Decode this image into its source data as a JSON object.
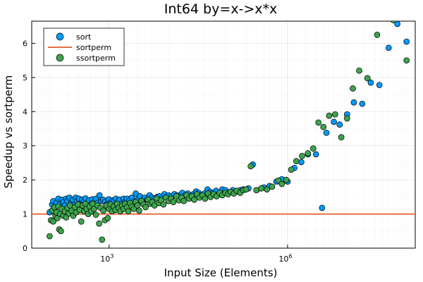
{
  "chart_data": {
    "type": "scatter",
    "title": "Int64 by=x->x*x",
    "xlabel": "Input Size (Elements)",
    "ylabel": "Speedup vs sortperm",
    "xscale": "log10",
    "xlim": [
      50,
      140000000
    ],
    "ylim": [
      0,
      6.65
    ],
    "grid": true,
    "legend_position": "top-left",
    "x_ticks": [
      {
        "value": 1000,
        "base": "10",
        "exp": "3"
      },
      {
        "value": 1000000,
        "base": "10",
        "exp": "6"
      }
    ],
    "y_ticks": [
      0,
      1,
      2,
      3,
      4,
      5,
      6
    ],
    "series": [
      {
        "name": "sort",
        "kind": "scatter",
        "color": "#009af9",
        "points": [
          [
            100,
            1.05
          ],
          [
            110,
            1.28
          ],
          [
            115,
            1.38
          ],
          [
            125,
            1.2
          ],
          [
            130,
            1.32
          ],
          [
            140,
            1.45
          ],
          [
            150,
            1.3
          ],
          [
            160,
            1.42
          ],
          [
            170,
            1.35
          ],
          [
            180,
            1.25
          ],
          [
            190,
            1.45
          ],
          [
            200,
            1.38
          ],
          [
            215,
            1.48
          ],
          [
            230,
            1.33
          ],
          [
            245,
            1.42
          ],
          [
            260,
            1.28
          ],
          [
            275,
            1.48
          ],
          [
            290,
            1.38
          ],
          [
            310,
            1.45
          ],
          [
            330,
            1.3
          ],
          [
            350,
            1.42
          ],
          [
            375,
            1.36
          ],
          [
            400,
            1.46
          ],
          [
            430,
            1.33
          ],
          [
            460,
            1.4
          ],
          [
            490,
            1.27
          ],
          [
            520,
            1.43
          ],
          [
            560,
            1.35
          ],
          [
            600,
            1.45
          ],
          [
            640,
            1.32
          ],
          [
            690,
            1.55
          ],
          [
            740,
            1.38
          ],
          [
            790,
            1.42
          ],
          [
            850,
            1.35
          ],
          [
            910,
            1.28
          ],
          [
            980,
            1.43
          ],
          [
            1050,
            1.33
          ],
          [
            1130,
            1.4
          ],
          [
            1200,
            1.38
          ],
          [
            1300,
            1.45
          ],
          [
            1400,
            1.35
          ],
          [
            1500,
            1.42
          ],
          [
            1600,
            1.3
          ],
          [
            1750,
            1.45
          ],
          [
            1900,
            1.38
          ],
          [
            2000,
            1.45
          ],
          [
            2200,
            1.4
          ],
          [
            2400,
            1.48
          ],
          [
            2600,
            1.35
          ],
          [
            2800,
            1.6
          ],
          [
            3000,
            1.42
          ],
          [
            3300,
            1.52
          ],
          [
            3600,
            1.4
          ],
          [
            4000,
            1.48
          ],
          [
            4400,
            1.42
          ],
          [
            4800,
            1.55
          ],
          [
            5300,
            1.48
          ],
          [
            5800,
            1.45
          ],
          [
            6400,
            1.5
          ],
          [
            7000,
            1.52
          ],
          [
            7700,
            1.45
          ],
          [
            8500,
            1.58
          ],
          [
            9300,
            1.5
          ],
          [
            10000,
            1.55
          ],
          [
            11000,
            1.5
          ],
          [
            12500,
            1.58
          ],
          [
            14000,
            1.55
          ],
          [
            15500,
            1.52
          ],
          [
            17000,
            1.62
          ],
          [
            19000,
            1.55
          ],
          [
            21000,
            1.6
          ],
          [
            23000,
            1.5
          ],
          [
            26000,
            1.58
          ],
          [
            29000,
            1.66
          ],
          [
            32000,
            1.62
          ],
          [
            36000,
            1.55
          ],
          [
            40000,
            1.6
          ],
          [
            45000,
            1.72
          ],
          [
            50000,
            1.65
          ],
          [
            56000,
            1.62
          ],
          [
            63000,
            1.68
          ],
          [
            70000,
            1.58
          ],
          [
            80000,
            1.72
          ],
          [
            90000,
            1.7
          ],
          [
            100000,
            1.62
          ],
          [
            120000,
            1.7
          ],
          [
            140000,
            1.66
          ],
          [
            160000,
            1.7
          ],
          [
            180000,
            1.72
          ],
          [
            220000,
            1.75
          ],
          [
            260000,
            2.45
          ],
          [
            300000,
            1.7
          ],
          [
            400000,
            1.78
          ],
          [
            500000,
            1.82
          ],
          [
            650000,
            1.95
          ],
          [
            800000,
            2.02
          ],
          [
            1000000,
            1.95
          ],
          [
            1300000,
            2.35
          ],
          [
            1700000,
            2.52
          ],
          [
            2200000,
            2.75
          ],
          [
            3000000,
            2.75
          ],
          [
            3800000,
            1.18
          ],
          [
            4500000,
            3.38
          ],
          [
            6000000,
            3.7
          ],
          [
            7500000,
            3.62
          ],
          [
            10000000,
            3.92
          ],
          [
            13000000,
            4.27
          ],
          [
            18000000,
            4.23
          ],
          [
            25000000,
            4.85
          ],
          [
            35000000,
            4.78
          ],
          [
            50000000,
            5.87
          ],
          [
            70000000,
            6.57
          ],
          [
            100000000,
            6.05
          ]
        ]
      },
      {
        "name": "sortperm",
        "kind": "line",
        "color": "#e26f46",
        "y": 1.0
      },
      {
        "name": "ssortperm",
        "kind": "scatter",
        "color": "#3da44d",
        "points": [
          [
            100,
            0.35
          ],
          [
            105,
            0.82
          ],
          [
            110,
            1.1
          ],
          [
            115,
            0.78
          ],
          [
            120,
            1.2
          ],
          [
            125,
            0.95
          ],
          [
            130,
            1.05
          ],
          [
            135,
            0.88
          ],
          [
            140,
            1.22
          ],
          [
            145,
            0.55
          ],
          [
            150,
            1.0
          ],
          [
            155,
            0.5
          ],
          [
            160,
            1.15
          ],
          [
            170,
            0.95
          ],
          [
            180,
            1.08
          ],
          [
            190,
            0.9
          ],
          [
            200,
            1.18
          ],
          [
            210,
            1.02
          ],
          [
            220,
            1.25
          ],
          [
            235,
            1.1
          ],
          [
            250,
            0.95
          ],
          [
            265,
            1.2
          ],
          [
            280,
            1.05
          ],
          [
            300,
            1.28
          ],
          [
            320,
            1.12
          ],
          [
            340,
            0.78
          ],
          [
            360,
            1.25
          ],
          [
            380,
            1.08
          ],
          [
            400,
            1.3
          ],
          [
            420,
            1.15
          ],
          [
            445,
            1.0
          ],
          [
            470,
            1.22
          ],
          [
            500,
            1.08
          ],
          [
            530,
            1.3
          ],
          [
            560,
            1.15
          ],
          [
            600,
            0.98
          ],
          [
            640,
            1.25
          ],
          [
            680,
            0.72
          ],
          [
            720,
            1.18
          ],
          [
            760,
            0.25
          ],
          [
            800,
            1.1
          ],
          [
            850,
            0.82
          ],
          [
            900,
            1.25
          ],
          [
            950,
            0.88
          ],
          [
            1000,
            1.15
          ],
          [
            1060,
            1.28
          ],
          [
            1120,
            1.08
          ],
          [
            1200,
            1.22
          ],
          [
            1280,
            1.12
          ],
          [
            1360,
            1.3
          ],
          [
            1450,
            1.18
          ],
          [
            1550,
            1.08
          ],
          [
            1650,
            1.25
          ],
          [
            1750,
            1.15
          ],
          [
            1850,
            1.3
          ],
          [
            2000,
            1.2
          ],
          [
            2100,
            1.08
          ],
          [
            2250,
            1.32
          ],
          [
            2400,
            1.22
          ],
          [
            2600,
            1.15
          ],
          [
            2800,
            1.35
          ],
          [
            3000,
            1.25
          ],
          [
            3200,
            1.1
          ],
          [
            3500,
            1.38
          ],
          [
            3800,
            1.28
          ],
          [
            4100,
            1.2
          ],
          [
            4500,
            1.42
          ],
          [
            4900,
            1.3
          ],
          [
            5300,
            1.35
          ],
          [
            5800,
            1.25
          ],
          [
            6300,
            1.45
          ],
          [
            6900,
            1.32
          ],
          [
            7500,
            1.4
          ],
          [
            8200,
            1.28
          ],
          [
            9000,
            1.48
          ],
          [
            10000,
            1.38
          ],
          [
            11000,
            1.45
          ],
          [
            12000,
            1.35
          ],
          [
            13500,
            1.52
          ],
          [
            15000,
            1.4
          ],
          [
            16500,
            1.48
          ],
          [
            18000,
            1.38
          ],
          [
            20000,
            1.55
          ],
          [
            22000,
            1.45
          ],
          [
            24500,
            1.52
          ],
          [
            27000,
            1.42
          ],
          [
            30000,
            1.58
          ],
          [
            33000,
            1.48
          ],
          [
            37000,
            1.55
          ],
          [
            41000,
            1.45
          ],
          [
            46000,
            1.6
          ],
          [
            51000,
            1.5
          ],
          [
            57000,
            1.58
          ],
          [
            64000,
            1.52
          ],
          [
            72000,
            1.62
          ],
          [
            80000,
            1.55
          ],
          [
            90000,
            1.62
          ],
          [
            100000,
            1.58
          ],
          [
            110000,
            1.65
          ],
          [
            125000,
            1.6
          ],
          [
            140000,
            1.68
          ],
          [
            160000,
            1.62
          ],
          [
            180000,
            1.7
          ],
          [
            200000,
            1.72
          ],
          [
            240000,
            2.4
          ],
          [
            300000,
            1.7
          ],
          [
            360000,
            1.75
          ],
          [
            450000,
            1.72
          ],
          [
            550000,
            1.8
          ],
          [
            700000,
            1.98
          ],
          [
            800000,
            1.88
          ],
          [
            950000,
            2.0
          ],
          [
            1150000,
            2.3
          ],
          [
            1400000,
            2.55
          ],
          [
            1750000,
            2.7
          ],
          [
            2200000,
            2.78
          ],
          [
            2700000,
            2.92
          ],
          [
            3300000,
            3.68
          ],
          [
            4000000,
            3.55
          ],
          [
            5000000,
            3.88
          ],
          [
            6300000,
            3.92
          ],
          [
            8000000,
            3.25
          ],
          [
            10000000,
            3.8
          ],
          [
            12500000,
            4.68
          ],
          [
            16000000,
            5.2
          ],
          [
            22000000,
            4.98
          ],
          [
            32000000,
            6.25
          ],
          [
            45000000,
            6.9
          ],
          [
            60000000,
            6.68
          ],
          [
            100000000,
            5.5
          ]
        ]
      }
    ]
  }
}
